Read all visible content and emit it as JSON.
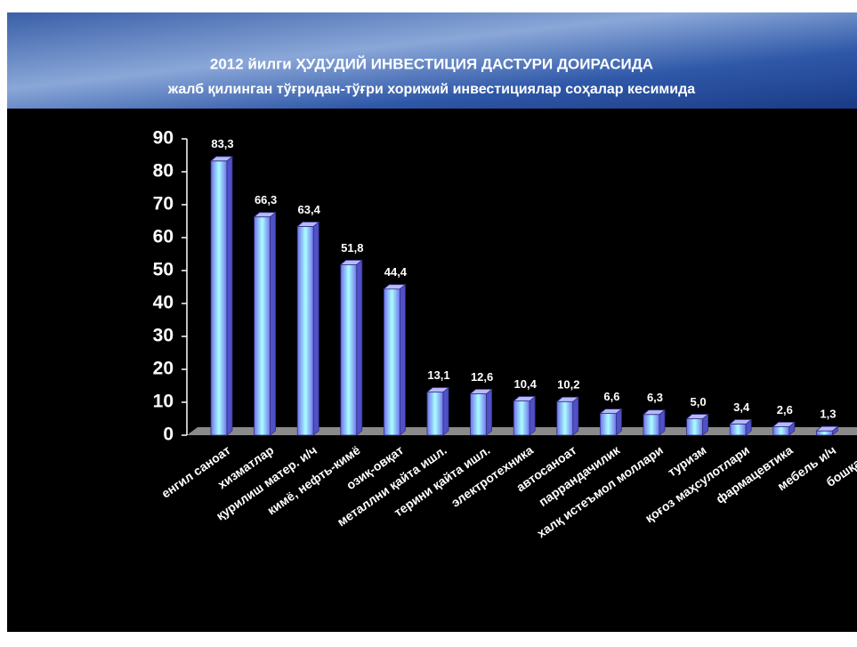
{
  "chart_data": {
    "type": "bar3d",
    "title": "2012 йилги ҲУДУДИЙ ИНВЕСТИЦИЯ ДАСТУРИ ДОИРАСИДА",
    "subtitle": "жалб қилинган тўғридан-тўғри хорижий инвестициялар соҳалар кесимида",
    "categories": [
      "енгил саноат",
      "хизматлар",
      "қурилиш матер. и/ч",
      "кимё, нефть-кимё",
      "озиқ-овқат",
      "металлни қайта ишл.",
      "терини қайта ишл.",
      "электротехника",
      "автосаноат",
      "паррандачилик",
      "халқ истеъмол моллари",
      "туризм",
      "қоғоз маҳсулотлари",
      "фармацевтика",
      "мебель и/ч",
      "бошқалар"
    ],
    "values": [
      83.3,
      66.3,
      63.4,
      51.8,
      44.4,
      13.1,
      12.6,
      10.4,
      10.2,
      6.6,
      6.3,
      5.0,
      3.4,
      2.6,
      1.3,
      null
    ],
    "value_labels": [
      "83,3",
      "66,3",
      "63,4",
      "51,8",
      "44,4",
      "13,1",
      "12,6",
      "10,4",
      "10,2",
      "6,6",
      "6,3",
      "5,0",
      "3,4",
      "2,6",
      "1,3",
      null
    ],
    "color": "#7a7af5",
    "ylim": [
      0,
      90
    ],
    "yticks": [
      0,
      10,
      20,
      30,
      40,
      50,
      60,
      70,
      80,
      90
    ]
  }
}
